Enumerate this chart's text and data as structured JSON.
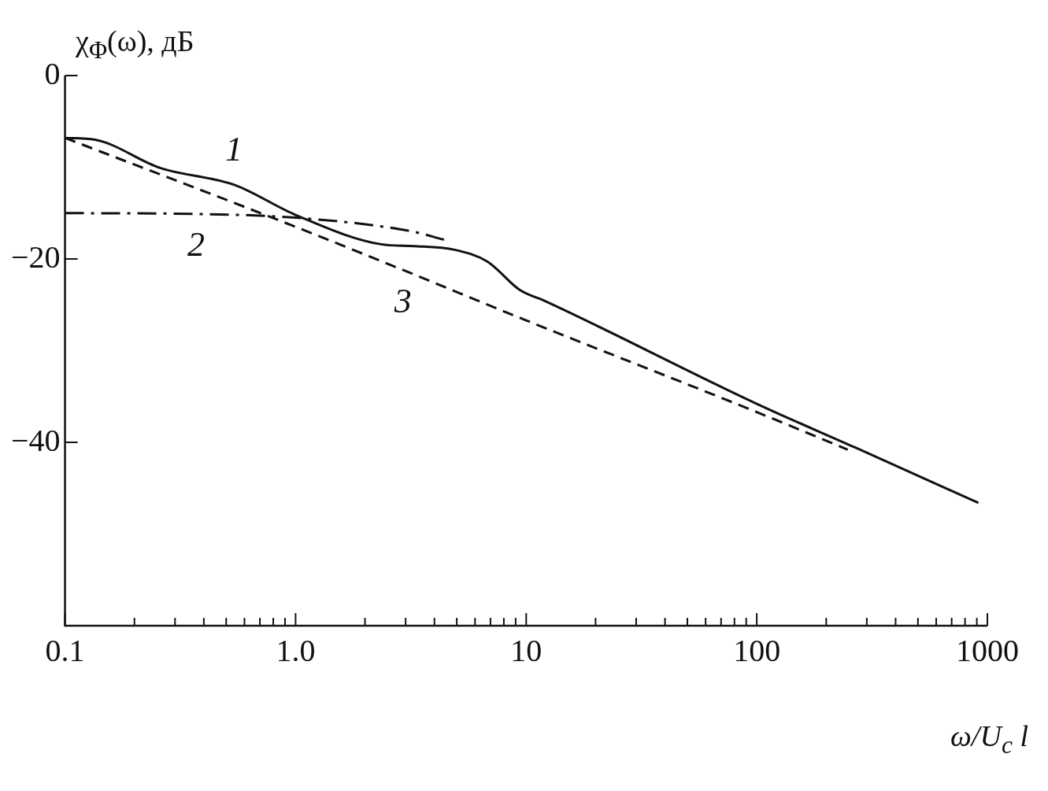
{
  "chart_data": {
    "type": "line",
    "ylabel": "χ$_{Φ}$(ω), дБ",
    "xlabel": "ω/U$_{c}$ l",
    "log": "x",
    "grid": false,
    "legend": false,
    "marker": "none",
    "xlim": [
      0.1,
      1000
    ],
    "ylim": [
      -60,
      0
    ],
    "xticks": [
      {
        "value": 0.1,
        "label": "0.1"
      },
      {
        "value": 0.2,
        "label": null
      },
      {
        "value": 0.3,
        "label": null
      },
      {
        "value": 0.4,
        "label": null
      },
      {
        "value": 0.5,
        "label": null
      },
      {
        "value": 0.6,
        "label": null
      },
      {
        "value": 0.7,
        "label": null
      },
      {
        "value": 0.8,
        "label": null
      },
      {
        "value": 0.9,
        "label": null
      },
      {
        "value": 1,
        "label": "1.0"
      },
      {
        "value": 2,
        "label": null
      },
      {
        "value": 3,
        "label": null
      },
      {
        "value": 4,
        "label": null
      },
      {
        "value": 5,
        "label": null
      },
      {
        "value": 6,
        "label": null
      },
      {
        "value": 7,
        "label": null
      },
      {
        "value": 8,
        "label": null
      },
      {
        "value": 9,
        "label": null
      },
      {
        "value": 10,
        "label": "10"
      },
      {
        "value": 20,
        "label": null
      },
      {
        "value": 30,
        "label": null
      },
      {
        "value": 40,
        "label": null
      },
      {
        "value": 50,
        "label": null
      },
      {
        "value": 60,
        "label": null
      },
      {
        "value": 70,
        "label": null
      },
      {
        "value": 80,
        "label": null
      },
      {
        "value": 90,
        "label": null
      },
      {
        "value": 100,
        "label": "100"
      },
      {
        "value": 200,
        "label": null
      },
      {
        "value": 300,
        "label": null
      },
      {
        "value": 400,
        "label": null
      },
      {
        "value": 500,
        "label": null
      },
      {
        "value": 600,
        "label": null
      },
      {
        "value": 700,
        "label": null
      },
      {
        "value": 800,
        "label": null
      },
      {
        "value": 900,
        "label": null
      },
      {
        "value": 1000,
        "label": "1000"
      }
    ],
    "yticks": [
      {
        "value": 0,
        "label": "0"
      },
      {
        "value": -20,
        "label": "−20"
      },
      {
        "value": -40,
        "label": "−40"
      }
    ],
    "series": [
      {
        "color": "#111111",
        "line_style": "solid",
        "x": [
          0.1,
          0.135,
          0.26,
          0.54,
          1.0,
          2.35,
          3.27,
          4.9,
          6.8,
          9.4,
          12.1,
          100,
          269,
          914
        ],
        "values": [
          -6.8,
          -7,
          -10.1,
          -11.9,
          -15.2,
          -18.4,
          -18.6,
          -19,
          -20.3,
          -23.4,
          -24.6,
          -35.8,
          -40.6,
          -46.6
        ]
      },
      {
        "color": "#111111",
        "line_style": "dashdot",
        "x": [
          0.1,
          0.37,
          1.0,
          3.2,
          4.4
        ],
        "values": [
          -15,
          -15.1,
          -15.5,
          -17,
          -17.9
        ]
      },
      {
        "color": "#111111",
        "line_style": "dashed",
        "x": [
          0.1,
          1,
          2.92,
          10,
          100,
          248
        ],
        "values": [
          -6.8,
          -16.5,
          -21.2,
          -26.7,
          -36.7,
          -40.8
        ]
      }
    ],
    "annotations": [
      {
        "text": "1",
        "x": 0.54,
        "y": -11.9
      },
      {
        "text": "2",
        "x": 0.37,
        "y": -15.1
      },
      {
        "text": "3",
        "x": 2.92,
        "y": -21.2
      }
    ]
  }
}
